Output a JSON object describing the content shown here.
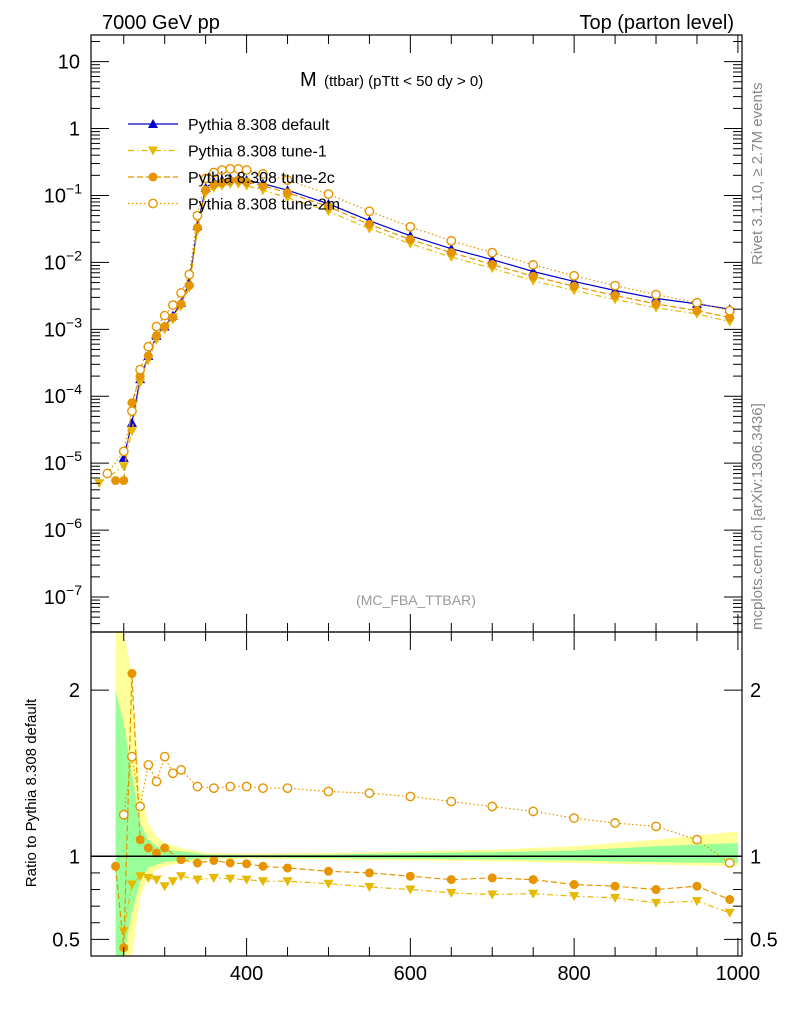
{
  "header": {
    "left": "7000 GeV pp",
    "right": "Top (parton level)"
  },
  "side_labels": {
    "rivet": "Rivet 3.1.10, ≥ 2.7M events",
    "mcplots": "mcplots.cern.ch [arXiv:1306.3436]"
  },
  "chart_data": [
    {
      "type": "scatter",
      "title_main": "M",
      "title_sub": "(ttbar) (pTtt < 50 dy > 0)",
      "watermark": "(MC_FBA_TTBAR)",
      "yscale": "log",
      "xlim": [
        210,
        1005
      ],
      "ylim": [
        3e-08,
        25
      ],
      "y_ticks": [
        "10",
        "1",
        "10^-1",
        "10^-2",
        "10^-3",
        "10^-4",
        "10^-5",
        "10^-6",
        "10^-7"
      ],
      "legend_position": "top-left",
      "series": [
        {
          "name": "Pythia 8.308 default",
          "color": "#0000cc",
          "marker": "triangle-up",
          "line": "solid",
          "x": [
            250,
            260,
            270,
            280,
            290,
            300,
            310,
            320,
            330,
            340,
            350,
            360,
            370,
            380,
            390,
            400,
            420,
            450,
            500,
            550,
            600,
            650,
            700,
            750,
            800,
            850,
            900,
            950,
            990
          ],
          "y": [
            1.2e-05,
            4e-05,
            0.00018,
            0.0004,
            0.0008,
            0.0011,
            0.0016,
            0.0025,
            0.005,
            0.035,
            0.13,
            0.16,
            0.17,
            0.18,
            0.18,
            0.17,
            0.15,
            0.12,
            0.075,
            0.042,
            0.025,
            0.016,
            0.011,
            0.0073,
            0.0052,
            0.0038,
            0.0029,
            0.0024,
            0.002
          ]
        },
        {
          "name": "Pythia 8.308 tune-1",
          "color": "#e6b800",
          "marker": "triangle-down",
          "line": "dashdot",
          "x": [
            220,
            250,
            260,
            270,
            280,
            290,
            300,
            310,
            320,
            330,
            340,
            350,
            360,
            370,
            380,
            390,
            400,
            420,
            450,
            500,
            550,
            600,
            650,
            700,
            750,
            800,
            850,
            900,
            950,
            990
          ],
          "y": [
            5e-06,
            9e-06,
            3e-05,
            0.00016,
            0.00035,
            0.0007,
            0.001,
            0.0014,
            0.0022,
            0.0042,
            0.03,
            0.11,
            0.13,
            0.14,
            0.15,
            0.15,
            0.14,
            0.12,
            0.093,
            0.058,
            0.032,
            0.019,
            0.012,
            0.0082,
            0.0053,
            0.0038,
            0.0028,
            0.0021,
            0.0017,
            0.0013
          ]
        },
        {
          "name": "Pythia 8.308 tune-2c",
          "color": "#e69500",
          "marker": "circle",
          "line": "dashed",
          "x": [
            240,
            250,
            260,
            270,
            280,
            290,
            300,
            310,
            320,
            330,
            340,
            350,
            360,
            370,
            380,
            390,
            400,
            420,
            450,
            500,
            550,
            600,
            650,
            700,
            750,
            800,
            850,
            900,
            950,
            990
          ],
          "y": [
            5.5e-06,
            5.5e-06,
            8e-05,
            0.0002,
            0.0004,
            0.0008,
            0.0011,
            0.0015,
            0.0024,
            0.0045,
            0.033,
            0.12,
            0.145,
            0.155,
            0.165,
            0.17,
            0.16,
            0.14,
            0.11,
            0.068,
            0.037,
            0.022,
            0.014,
            0.0093,
            0.0062,
            0.0044,
            0.0032,
            0.0024,
            0.0019,
            0.0015
          ]
        },
        {
          "name": "Pythia 8.308 tune-2m",
          "color": "#e69500",
          "marker": "open-circle",
          "line": "dotted",
          "x": [
            230,
            250,
            260,
            270,
            280,
            290,
            300,
            310,
            320,
            330,
            340,
            350,
            360,
            370,
            380,
            390,
            400,
            420,
            450,
            500,
            550,
            600,
            650,
            700,
            750,
            800,
            850,
            900,
            950,
            990
          ],
          "y": [
            7e-06,
            1.5e-05,
            6e-05,
            0.00025,
            0.00055,
            0.0011,
            0.0016,
            0.0023,
            0.0035,
            0.0066,
            0.05,
            0.18,
            0.22,
            0.24,
            0.25,
            0.25,
            0.24,
            0.21,
            0.17,
            0.105,
            0.058,
            0.034,
            0.021,
            0.014,
            0.0092,
            0.0063,
            0.0045,
            0.0033,
            0.0025,
            0.0019
          ]
        }
      ]
    },
    {
      "type": "scatter",
      "ylabel": "Ratio to Pythia 8.308 default",
      "xlim": [
        210,
        1005
      ],
      "ylim": [
        0.4,
        2.35
      ],
      "x_ticks": [
        400,
        600,
        800,
        1000
      ],
      "y_ticks": [
        "2",
        "1",
        "0.5"
      ],
      "band_yellow": {
        "x": [
          240,
          250,
          260,
          270,
          280,
          290,
          300,
          320,
          350,
          400,
          500,
          600,
          700,
          800,
          900,
          1000
        ],
        "lo": [
          0.4,
          0.4,
          0.4,
          0.75,
          0.88,
          0.92,
          0.94,
          0.96,
          0.98,
          0.985,
          0.98,
          0.975,
          0.97,
          0.96,
          0.95,
          0.94
        ],
        "hi": [
          2.35,
          2.35,
          2.1,
          1.4,
          1.2,
          1.12,
          1.08,
          1.05,
          1.02,
          1.015,
          1.02,
          1.03,
          1.04,
          1.06,
          1.1,
          1.15
        ]
      },
      "band_green": {
        "x": [
          240,
          250,
          260,
          270,
          280,
          290,
          300,
          320,
          350,
          400,
          500,
          600,
          700,
          800,
          900,
          1000
        ],
        "lo": [
          0.4,
          0.4,
          0.66,
          0.85,
          0.93,
          0.95,
          0.965,
          0.975,
          0.99,
          0.992,
          0.99,
          0.985,
          0.98,
          0.975,
          0.965,
          0.96
        ],
        "hi": [
          2.0,
          1.8,
          1.5,
          1.2,
          1.1,
          1.06,
          1.04,
          1.03,
          1.01,
          1.008,
          1.01,
          1.02,
          1.025,
          1.035,
          1.06,
          1.08
        ]
      },
      "series": [
        {
          "name": "Pythia 8.308 tune-1",
          "color": "#e6b800",
          "marker": "triangle-down",
          "line": "dashdot",
          "x": [
            250,
            260,
            270,
            280,
            290,
            300,
            310,
            320,
            340,
            360,
            380,
            400,
            420,
            450,
            500,
            550,
            600,
            650,
            700,
            750,
            800,
            850,
            900,
            950,
            990
          ],
          "y": [
            0.55,
            0.83,
            0.88,
            0.87,
            0.86,
            0.82,
            0.85,
            0.88,
            0.86,
            0.87,
            0.865,
            0.86,
            0.85,
            0.85,
            0.835,
            0.815,
            0.8,
            0.78,
            0.77,
            0.775,
            0.76,
            0.75,
            0.72,
            0.73,
            0.66
          ]
        },
        {
          "name": "Pythia 8.308 tune-2c",
          "color": "#e69500",
          "marker": "circle",
          "line": "dashed",
          "x": [
            240,
            250,
            260,
            270,
            280,
            290,
            300,
            320,
            340,
            360,
            380,
            400,
            420,
            450,
            500,
            550,
            600,
            650,
            700,
            750,
            800,
            850,
            900,
            950,
            990
          ],
          "y": [
            0.94,
            0.45,
            2.1,
            1.1,
            1.05,
            1.02,
            1.05,
            0.98,
            0.96,
            0.975,
            0.96,
            0.955,
            0.94,
            0.93,
            0.91,
            0.9,
            0.88,
            0.86,
            0.87,
            0.86,
            0.83,
            0.82,
            0.8,
            0.82,
            0.74
          ]
        },
        {
          "name": "Pythia 8.308 tune-2m",
          "color": "#e69500",
          "marker": "open-circle",
          "line": "dotted",
          "x": [
            250,
            260,
            270,
            280,
            290,
            300,
            310,
            320,
            340,
            360,
            380,
            400,
            420,
            450,
            500,
            550,
            600,
            650,
            700,
            750,
            800,
            850,
            900,
            950,
            990
          ],
          "y": [
            1.25,
            1.6,
            1.3,
            1.55,
            1.45,
            1.6,
            1.5,
            1.52,
            1.42,
            1.41,
            1.42,
            1.42,
            1.41,
            1.41,
            1.39,
            1.38,
            1.36,
            1.33,
            1.3,
            1.27,
            1.23,
            1.2,
            1.18,
            1.1,
            0.96
          ]
        }
      ]
    }
  ]
}
